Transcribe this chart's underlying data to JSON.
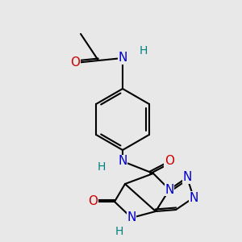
{
  "background_color": "#e8e8e8",
  "colors": {
    "C": "#000000",
    "N": "#0000cc",
    "O": "#cc0000",
    "H": "#008080",
    "bond": "#000000"
  }
}
